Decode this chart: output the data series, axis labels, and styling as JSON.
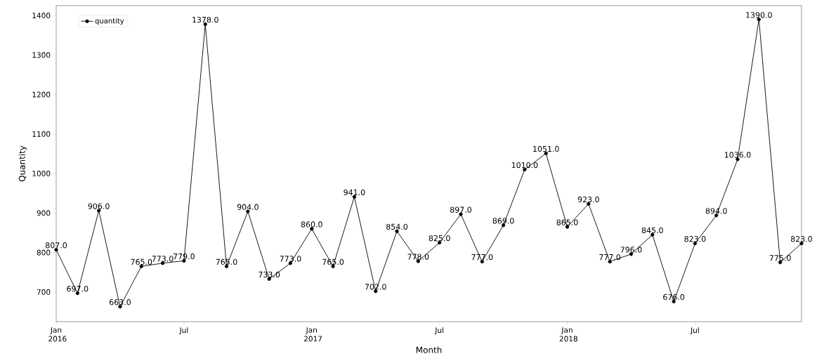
{
  "chart_data": {
    "type": "line",
    "xlabel": "Month",
    "ylabel": "Quantity",
    "x": [
      "2016-01",
      "2016-02",
      "2016-03",
      "2016-04",
      "2016-05",
      "2016-06",
      "2016-07",
      "2016-08",
      "2016-09",
      "2016-10",
      "2016-11",
      "2016-12",
      "2017-01",
      "2017-02",
      "2017-03",
      "2017-04",
      "2017-05",
      "2017-06",
      "2017-07",
      "2017-08",
      "2017-09",
      "2017-10",
      "2017-11",
      "2017-12",
      "2018-01",
      "2018-02",
      "2018-03",
      "2018-04",
      "2018-05",
      "2018-06",
      "2018-07",
      "2018-08",
      "2018-09",
      "2018-10",
      "2018-11",
      "2018-12"
    ],
    "series": [
      {
        "name": "quantity",
        "color": "#000000",
        "values": [
          807,
          697,
          906,
          663,
          765,
          773,
          779,
          1378,
          765,
          904,
          733,
          773,
          860,
          765,
          941,
          702,
          854,
          778,
          825,
          897,
          777,
          869,
          1010,
          1051,
          865,
          923,
          777,
          796,
          845,
          676,
          823,
          894,
          1036,
          1390,
          775,
          823
        ],
        "value_labels": [
          "807.0",
          "697.0",
          "906.0",
          "663.0",
          "765.0",
          "773.0",
          "779.0",
          "1378.0",
          "765.0",
          "904.0",
          "733.0",
          "773.0",
          "860.0",
          "765.0",
          "941.0",
          "702.0",
          "854.0",
          "778.0",
          "825.0",
          "897.0",
          "777.0",
          "869.0",
          "1010.0",
          "1051.0",
          "865.0",
          "923.0",
          "777.0",
          "796.0",
          "845.0",
          "676.0",
          "823.0",
          "894.0",
          "1036.0",
          "1390.0",
          "775.0",
          "823.0"
        ]
      }
    ],
    "xlim": [
      "2016-01",
      "2018-12"
    ],
    "xticks": [
      {
        "value": "2016-01",
        "label": "Jan 2016"
      },
      {
        "value": "2016-07",
        "label": "Jul"
      },
      {
        "value": "2017-01",
        "label": "Jan 2017"
      },
      {
        "value": "2017-07",
        "label": "Jul"
      },
      {
        "value": "2018-01",
        "label": "Jan 2018"
      },
      {
        "value": "2018-07",
        "label": "Jul"
      }
    ],
    "ylim": [
      625,
      1425
    ],
    "yticks": [
      700,
      800,
      900,
      1000,
      1100,
      1200,
      1300,
      1400
    ],
    "grid": false,
    "legend": "top left",
    "marker": "circle",
    "line_style": "solid"
  }
}
